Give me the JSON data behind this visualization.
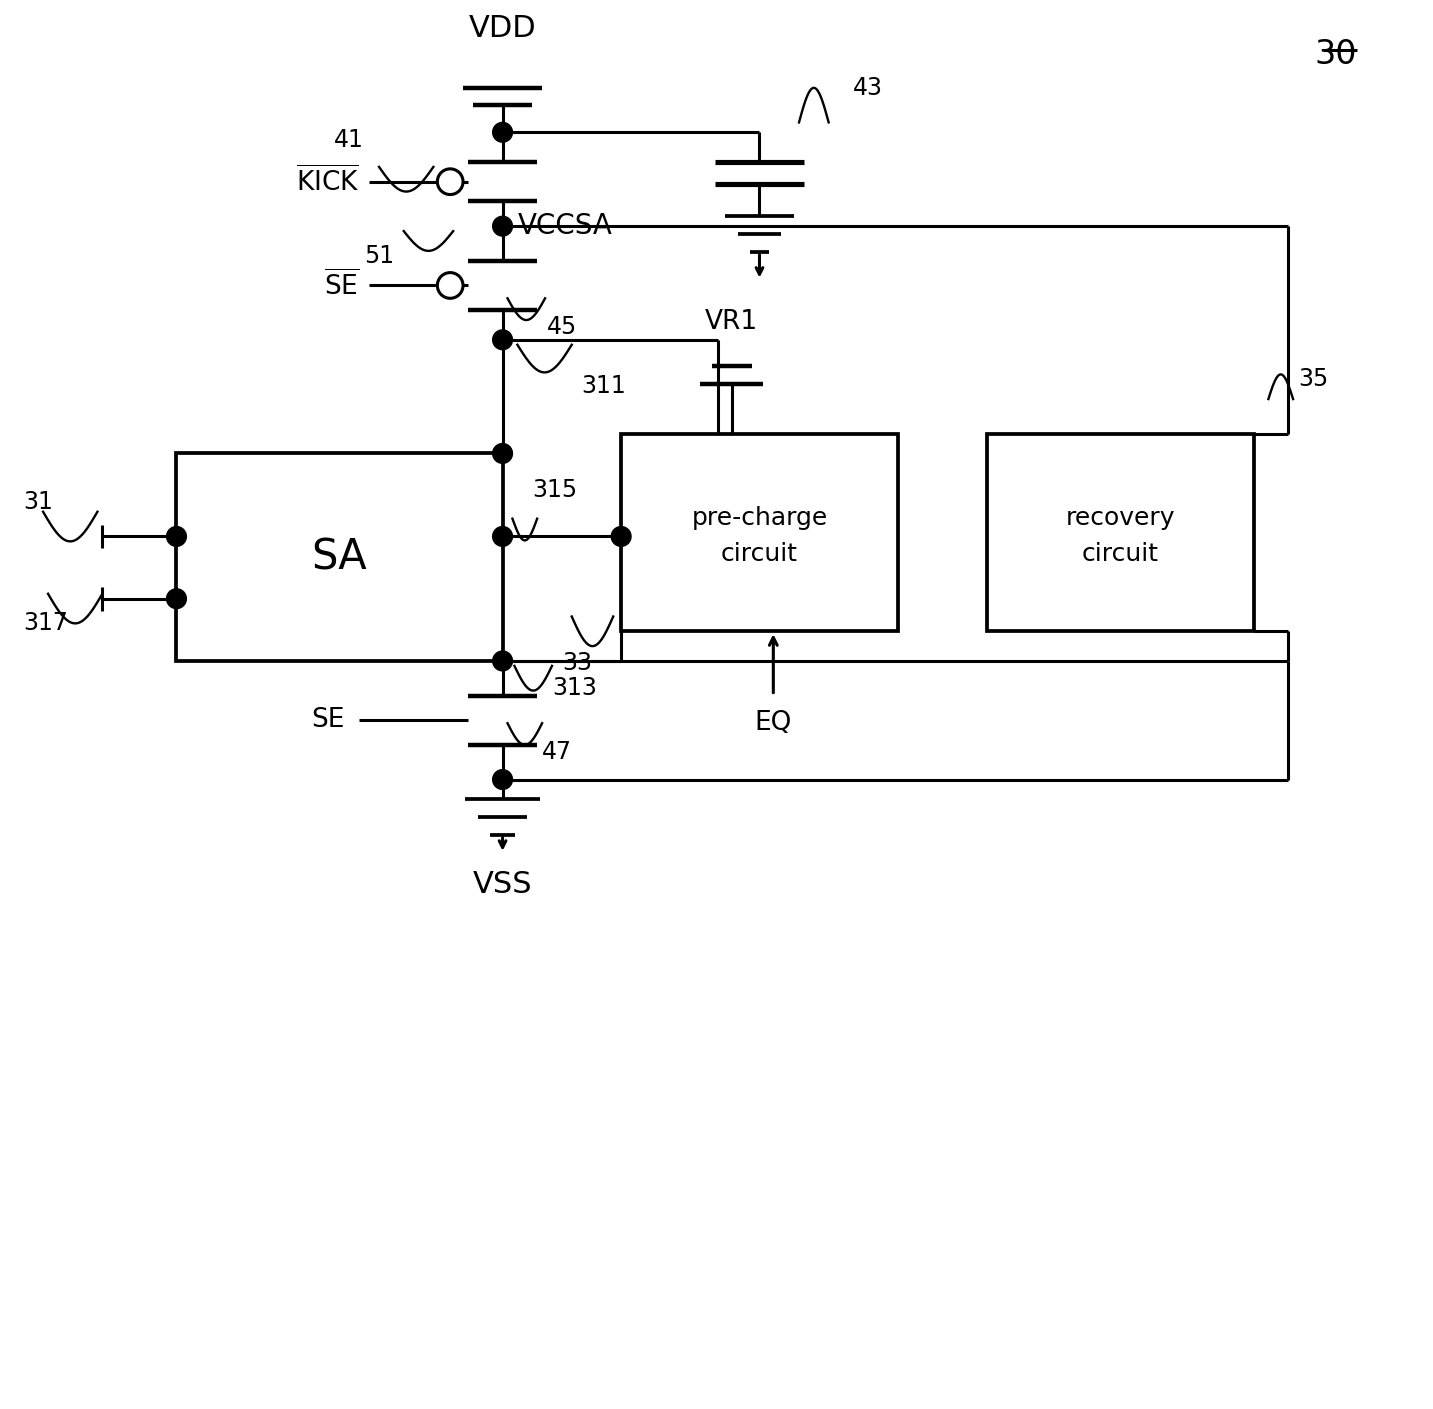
{
  "fig_width": 14.33,
  "fig_height": 14.09,
  "bg_color": "#ffffff",
  "line_color": "#000000",
  "lw": 2.2,
  "title_label": "30",
  "vdd_label": "VDD",
  "vss_label": "VSS",
  "vccsa_label": "VCCSA",
  "vr1_label": "VR1",
  "eq_label": "EQ",
  "kick_bar_label": "KICK",
  "se_bar_label": "SE",
  "se_label": "SE",
  "sa_label": "SA",
  "precharge_line1": "pre-charge",
  "precharge_line2": "circuit",
  "recovery_line1": "recovery",
  "recovery_line2": "circuit",
  "label_41": "41",
  "label_43": "43",
  "label_45": "45",
  "label_47": "47",
  "label_51": "51",
  "label_31": "31",
  "label_33": "33",
  "label_35": "35",
  "label_311": "311",
  "label_313": "313",
  "label_315": "315",
  "label_317": "317",
  "font_large": 22,
  "font_mid": 19,
  "font_small": 17,
  "font_sa": 30
}
